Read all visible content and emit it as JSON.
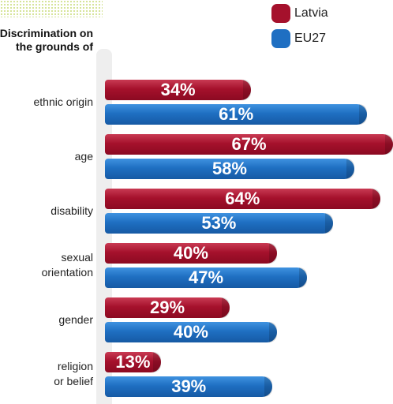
{
  "title": "Discrimination on the grounds of",
  "legend": [
    {
      "name": "Latvia",
      "color": "#a5112c"
    },
    {
      "name": "EU27",
      "color": "#1f6fc2"
    }
  ],
  "chart_data": {
    "type": "bar",
    "orientation": "horizontal",
    "title": "Discrimination on the grounds of",
    "categories": [
      "ethnic origin",
      "age",
      "disability",
      "sexual\norientation",
      "gender",
      "religion\nor belief"
    ],
    "series": [
      {
        "name": "Latvia",
        "values": [
          34,
          67,
          64,
          40,
          29,
          13
        ],
        "labels": [
          "34%",
          "67%",
          "64%",
          "40%",
          "29%",
          "13%"
        ]
      },
      {
        "name": "EU27",
        "values": [
          61,
          58,
          53,
          47,
          40,
          39
        ],
        "labels": [
          "61%",
          "58%",
          "53%",
          "47%",
          "40%",
          "39%"
        ]
      }
    ],
    "xlim": [
      0,
      67
    ],
    "legend_position": "top-right",
    "grid": false
  }
}
